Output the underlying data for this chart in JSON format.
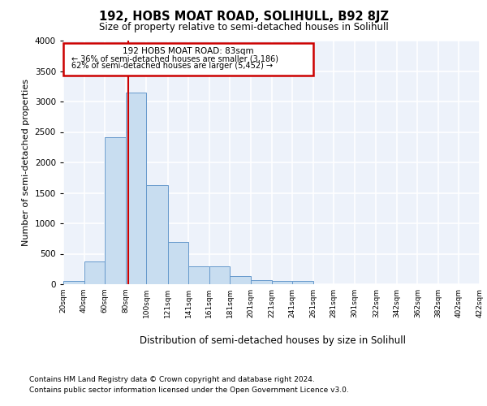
{
  "title": "192, HOBS MOAT ROAD, SOLIHULL, B92 8JZ",
  "subtitle": "Size of property relative to semi-detached houses in Solihull",
  "xlabel": "Distribution of semi-detached houses by size in Solihull",
  "ylabel": "Number of semi-detached properties",
  "footer1": "Contains HM Land Registry data © Crown copyright and database right 2024.",
  "footer2": "Contains public sector information licensed under the Open Government Licence v3.0.",
  "bar_color": "#c8ddf0",
  "bar_edge_color": "#6699cc",
  "background_color": "#edf2fa",
  "grid_color": "#ffffff",
  "property_size": 83,
  "property_label": "192 HOBS MOAT ROAD: 83sqm",
  "pct_smaller": 36,
  "count_smaller": 3186,
  "pct_larger": 62,
  "count_larger": 5452,
  "vline_color": "#cc0000",
  "box_color": "#cc0000",
  "bins": [
    20,
    40,
    60,
    80,
    100,
    121,
    141,
    161,
    181,
    201,
    221,
    241,
    261,
    281,
    301,
    322,
    342,
    362,
    382,
    402,
    422
  ],
  "bin_labels": [
    "20sqm",
    "40sqm",
    "60sqm",
    "80sqm",
    "100sqm",
    "121sqm",
    "141sqm",
    "161sqm",
    "181sqm",
    "201sqm",
    "221sqm",
    "241sqm",
    "261sqm",
    "281sqm",
    "301sqm",
    "322sqm",
    "342sqm",
    "362sqm",
    "382sqm",
    "402sqm",
    "422sqm"
  ],
  "bar_heights": [
    50,
    380,
    2420,
    3150,
    1630,
    700,
    300,
    300,
    130,
    70,
    60,
    55,
    0,
    0,
    0,
    0,
    0,
    0,
    0,
    0
  ],
  "ylim": [
    0,
    4000
  ],
  "yticks": [
    0,
    500,
    1000,
    1500,
    2000,
    2500,
    3000,
    3500,
    4000
  ]
}
